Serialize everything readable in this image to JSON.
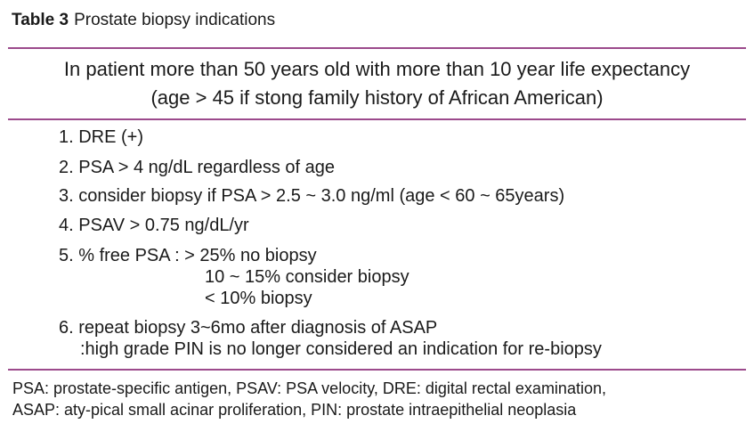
{
  "caption": {
    "label": "Table 3",
    "title": "Prostate biopsy indications"
  },
  "header": {
    "line1": "In patient more than 50 years old with more than 10 year life expectancy",
    "line2": "(age > 45 if stong family history of African American)"
  },
  "criteria": [
    {
      "text": "1. DRE (+)"
    },
    {
      "text": "2. PSA > 4 ng/dL regardless of age"
    },
    {
      "text": "3. consider biopsy if PSA > 2.5 ~ 3.0 ng/ml (age < 60 ~ 65years)"
    },
    {
      "text": "4. PSAV > 0.75 ng/dL/yr"
    },
    {
      "text": "5. % free PSA : > 25% no biopsy",
      "sub1": "10 ~ 15% consider biopsy",
      "sub2": "< 10% biopsy"
    },
    {
      "text": "6. repeat biopsy 3~6mo after diagnosis of ASAP",
      "sub1": ":high grade PIN is no longer considered an indication for re-biopsy"
    }
  ],
  "footnote": {
    "line1": "PSA: prostate-specific antigen, PSAV: PSA velocity, DRE: digital rectal examination,",
    "line2": "ASAP: aty-pical small acinar proliferation, PIN: prostate intraepithelial neoplasia"
  },
  "colors": {
    "rule": "#9c4a8c",
    "text": "#1a1a1a"
  }
}
